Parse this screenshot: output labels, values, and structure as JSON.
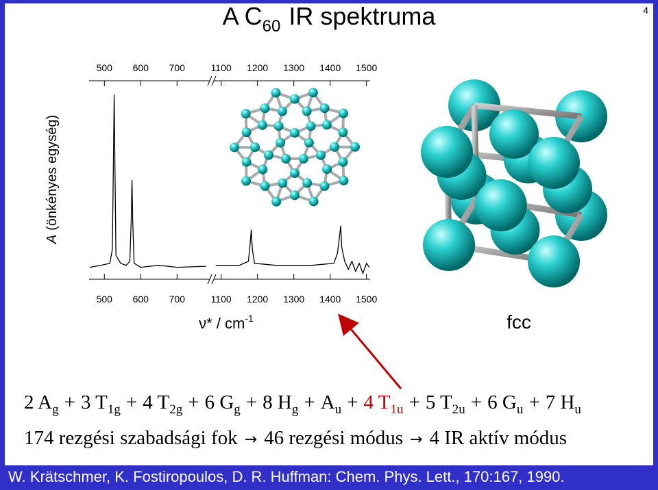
{
  "page_number": "4",
  "title": {
    "text": "A C",
    "sub": "60",
    "rest": "IR spektruma"
  },
  "chart_data": {
    "type": "line",
    "ylabel": {
      "symbol": "A",
      "text": "(önkényes egység)"
    },
    "xlabel": {
      "text": "ν* / cm",
      "sup": "-1"
    },
    "xlim": [
      458,
      1510
    ],
    "xbreak": [
      790,
      1080
    ],
    "ylim": [
      0,
      1
    ],
    "xticks": [
      500,
      600,
      700,
      1100,
      1200,
      1300,
      1400,
      1500
    ],
    "color": "#000000",
    "x": [
      460,
      490,
      515,
      522,
      525,
      527,
      529,
      532,
      545,
      560,
      570,
      574,
      576,
      578,
      582,
      600,
      650,
      700,
      780,
      800,
      1085,
      1150,
      1175,
      1180,
      1183,
      1186,
      1192,
      1250,
      1350,
      1410,
      1420,
      1426,
      1429,
      1432,
      1440,
      1450,
      1460,
      1470,
      1480,
      1490,
      1500,
      1508
    ],
    "values": [
      0.06,
      0.07,
      0.08,
      0.15,
      0.6,
      0.93,
      0.6,
      0.12,
      0.08,
      0.07,
      0.09,
      0.3,
      0.5,
      0.3,
      0.08,
      0.06,
      0.07,
      0.06,
      0.065,
      null,
      0.07,
      0.07,
      0.09,
      0.18,
      0.25,
      0.15,
      0.08,
      0.07,
      0.07,
      0.08,
      0.13,
      0.22,
      0.27,
      0.16,
      0.09,
      0.05,
      0.09,
      0.04,
      0.08,
      0.03,
      0.08,
      0.06
    ]
  },
  "structure_label": "fcc",
  "equation": {
    "operator": "+",
    "terms": [
      {
        "text": "2 A",
        "sub": "g"
      },
      {
        "text": "3 T",
        "sub": "1g"
      },
      {
        "text": "4 T",
        "sub": "2g"
      },
      {
        "text": "6 G",
        "sub": "g"
      },
      {
        "text": "8 H",
        "sub": "g"
      },
      {
        "text": "A",
        "sub": "u"
      },
      {
        "text": "4 T",
        "sub": "1u",
        "color": "#cc0000"
      },
      {
        "text": "5 T",
        "sub": "2u"
      },
      {
        "text": "6 G",
        "sub": "u"
      },
      {
        "text": "7 H",
        "sub": "u"
      }
    ]
  },
  "modes": [
    "174 rezgési szabadsági fok",
    "46 rezgési módus",
    "4 IR aktív módus"
  ],
  "footer": "W. Krätschmer, K. Fostiropoulos, D. R. Huffman: Chem. Phys. Lett., 170:167, 1990."
}
